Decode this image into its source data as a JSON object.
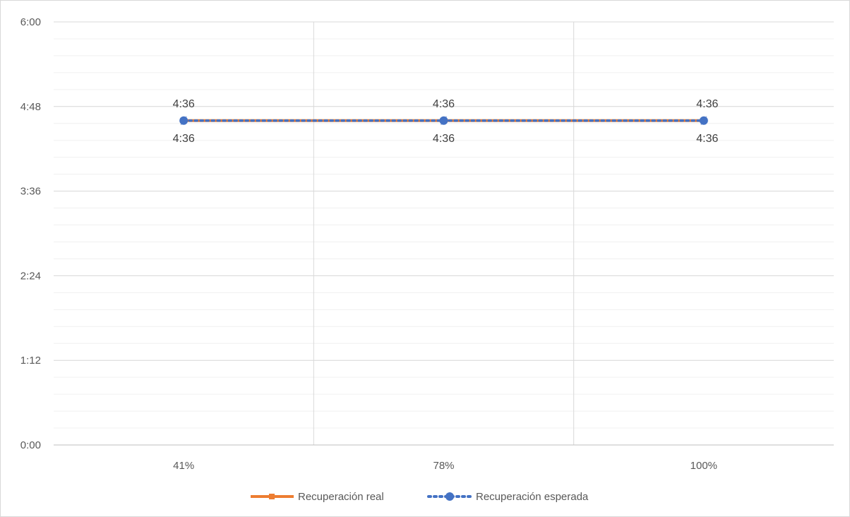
{
  "chart_data": {
    "type": "line",
    "categories": [
      "41%",
      "78%",
      "100%"
    ],
    "y_ticks": [
      "0:00",
      "1:12",
      "2:24",
      "3:36",
      "4:48",
      "6:00"
    ],
    "ylim_minutes": [
      0,
      360
    ],
    "y_major_step_minutes": 72,
    "y_minor_step_minutes": 14.4,
    "grid": true,
    "legend_position": "bottom",
    "series": [
      {
        "name": "Recuperación real",
        "values_minutes": [
          276,
          276,
          276
        ],
        "labels": [
          "4:36",
          "4:36",
          "4:36"
        ],
        "color": "#ed7d31",
        "style": "solid"
      },
      {
        "name": "Recuperación esperada",
        "values_minutes": [
          276,
          276,
          276
        ],
        "labels": [
          "4:36",
          "4:36",
          "4:36"
        ],
        "color": "#4472c4",
        "style": "dotted"
      }
    ]
  }
}
